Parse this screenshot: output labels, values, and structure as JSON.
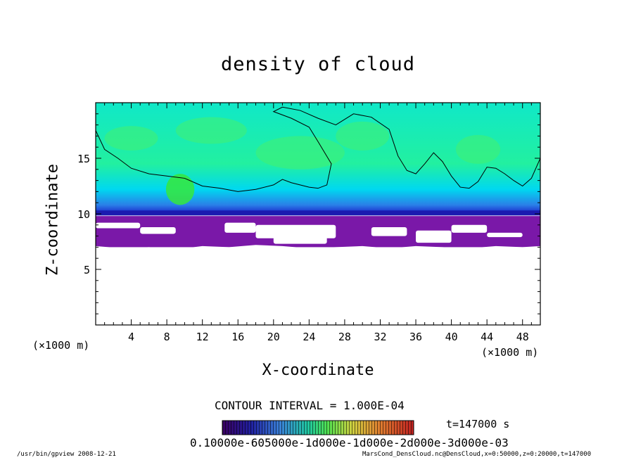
{
  "chart_data": {
    "type": "heatmap",
    "title": "density of cloud",
    "xlabel": "X-coordinate",
    "ylabel": "Z-coordinate",
    "x_unit_label": "(×1000 m)",
    "y_unit_label": "(×1000 m)",
    "xlim": [
      0,
      50
    ],
    "ylim": [
      0,
      20
    ],
    "x_ticks": [
      4,
      8,
      12,
      16,
      20,
      24,
      28,
      32,
      36,
      40,
      44,
      48
    ],
    "y_ticks": [
      5,
      10,
      15
    ],
    "contour_interval": "CONTOUR INTERVAL = 1.000E-04",
    "time": "t=147000 s",
    "colorbar_labels_text": "0.10000e-605000e-1d000e-1d000e-2d000e-3d000e-03",
    "colorbar_colors": [
      "#4b0082",
      "#2020c0",
      "#3a6ee0",
      "#00c8ff",
      "#22e080",
      "#7ff000",
      "#e8e000",
      "#ff8000",
      "#e02020"
    ],
    "regions": {
      "upper_cloud_z": [
        10,
        20
      ],
      "dense_layer_z": 10,
      "purple_band_z": [
        7,
        9.8
      ]
    },
    "colors": {
      "upper_cyan": "#00e6d2",
      "green_patch": "#3cf050",
      "blue_layer": "#1e2ad8",
      "purple": "#7a18a8"
    }
  },
  "footer": {
    "left": "/usr/bin/gpview   2008-12-21",
    "right": "MarsCond_DensCloud.nc@DensCloud,x=0:50000,z=0:20000,t=147000"
  }
}
